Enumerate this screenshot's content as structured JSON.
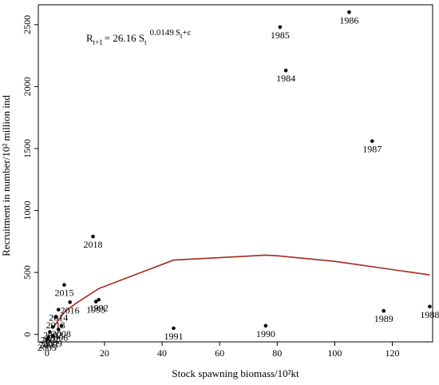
{
  "chart_data": {
    "type": "scatter",
    "xlabel": "Stock spawning biomass/10²kt",
    "ylabel": "Recruitment in number/10² million ind",
    "xlim": [
      -3,
      134
    ],
    "ylim": [
      -60,
      2660
    ],
    "xticks": [
      0,
      20,
      40,
      60,
      80,
      100,
      120
    ],
    "yticks": [
      0,
      500,
      1000,
      1500,
      2000,
      2500
    ],
    "equation": {
      "lhs": "R",
      "lhs_sub": "t+1",
      "mid": "= 26.16 S",
      "mid_sub": "t",
      "exp": "0.0149",
      "exp_s": "S",
      "exp_sub": "t",
      "tail": "+ε"
    },
    "points": [
      {
        "label": "1986",
        "x": 105,
        "y": 2600
      },
      {
        "label": "1985",
        "x": 81,
        "y": 2480
      },
      {
        "label": "1984",
        "x": 83,
        "y": 2130
      },
      {
        "label": "1987",
        "x": 113,
        "y": 1560
      },
      {
        "label": "2018",
        "x": 16,
        "y": 790
      },
      {
        "label": "2015",
        "x": 6,
        "y": 400
      },
      {
        "label": "1992",
        "x": 18,
        "y": 280
      },
      {
        "label": "1993",
        "x": 17,
        "y": 265
      },
      {
        "label": "2016",
        "x": 8,
        "y": 260
      },
      {
        "label": "1989",
        "x": 117,
        "y": 190
      },
      {
        "label": "1988",
        "x": 133,
        "y": 225
      },
      {
        "label": "1990",
        "x": 76,
        "y": 70
      },
      {
        "label": "1991",
        "x": 44,
        "y": 50
      },
      {
        "label": "2014",
        "x": 4,
        "y": 200
      },
      {
        "label": "2013",
        "x": 3,
        "y": 140
      },
      {
        "label": "2008",
        "x": 5,
        "y": 70
      },
      {
        "label": "2002",
        "x": 2,
        "y": 60
      },
      {
        "label": "2006",
        "x": 4,
        "y": 40
      },
      {
        "label": "2001",
        "x": 1,
        "y": 20
      },
      {
        "label": "2009",
        "x": 2,
        "y": -10
      },
      {
        "label": "2003",
        "x": 0.5,
        "y": -20
      },
      {
        "label": "2005",
        "x": 0,
        "y": -40
      }
    ],
    "fit_curve": {
      "color": "#a5281b",
      "x": [
        2,
        6,
        10,
        18,
        44,
        76,
        80,
        100,
        133
      ],
      "y": [
        50,
        180,
        250,
        370,
        600,
        640,
        635,
        590,
        480
      ]
    }
  }
}
